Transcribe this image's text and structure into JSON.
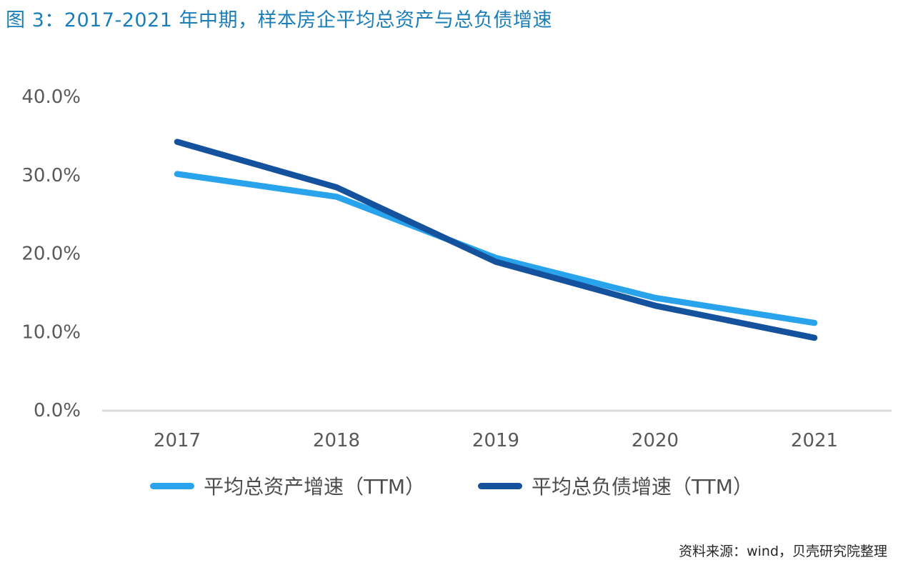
{
  "title": "图 3：2017-2021 年中期，样本房企平均总资产与总负债增速",
  "source": "资料来源：wind，贝壳研究院整理",
  "colors": {
    "title_blue": "#1B7EB8",
    "axis_text": "#595959",
    "baseline_gray": "#D9D9D9",
    "legend_text": "#4d4d4d",
    "source_text": "#262626"
  },
  "chart_data": {
    "type": "line",
    "title": "图 3：2017-2021 年中期，样本房企平均总资产与总负债增速",
    "categories": [
      "2017",
      "2018",
      "2019",
      "2020",
      "2021"
    ],
    "series": [
      {
        "name": "平均总资产增速（TTM）",
        "color": "#29A3EC",
        "values": [
          30.2,
          27.3,
          19.5,
          14.4,
          11.2
        ]
      },
      {
        "name": "平均总负债增速（TTM）",
        "color": "#15529E",
        "values": [
          34.3,
          28.5,
          19.0,
          13.4,
          9.3
        ]
      }
    ],
    "xlabel": "",
    "ylabel": "",
    "y_ticks": [
      {
        "label": "0.0%",
        "value": 0
      },
      {
        "label": "10.0%",
        "value": 10
      },
      {
        "label": "20.0%",
        "value": 20
      },
      {
        "label": "30.0%",
        "value": 30
      },
      {
        "label": "40.0%",
        "value": 40
      }
    ],
    "ylim": [
      0,
      40
    ],
    "grid": "baseline-only",
    "legend_position": "bottom-center"
  }
}
